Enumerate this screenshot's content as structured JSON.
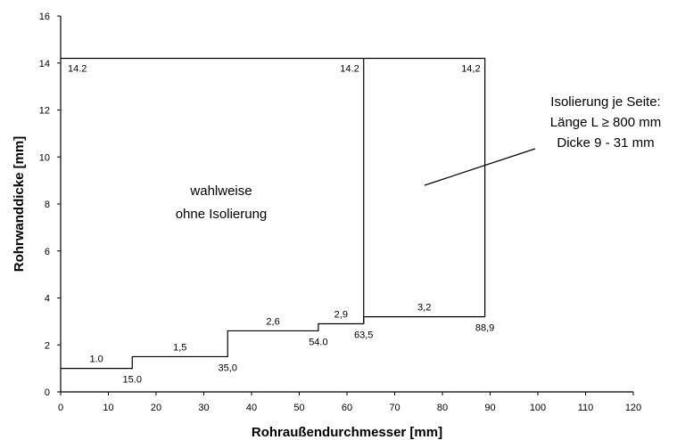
{
  "chart_data": {
    "type": "line",
    "title": "",
    "xlabel": "Rohraußendurchmesser [mm]",
    "ylabel": "Rohrwanddicke [mm]",
    "xlim": [
      0,
      120
    ],
    "ylim": [
      0,
      16
    ],
    "x_ticks": [
      0,
      10,
      20,
      30,
      40,
      50,
      60,
      70,
      80,
      90,
      100,
      110,
      120
    ],
    "y_ticks": [
      0,
      2,
      4,
      6,
      8,
      10,
      12,
      14,
      16
    ],
    "grid": false,
    "legend": "none",
    "line_color": "#000000",
    "series": [
      {
        "x": [
          0,
          15,
          15,
          35,
          35,
          54,
          54,
          63.5,
          63.5,
          88.9,
          88.9
        ],
        "y": [
          1.0,
          1.0,
          1.5,
          1.5,
          2.6,
          2.6,
          2.9,
          2.9,
          3.2,
          3.2,
          14.2
        ]
      },
      {
        "x": [
          0,
          88.9
        ],
        "y": [
          14.2,
          14.2
        ]
      },
      {
        "x": [
          63.5,
          63.5
        ],
        "y": [
          2.9,
          14.2
        ]
      }
    ],
    "step_labels": [
      {
        "text": "1.0",
        "x": 7.5,
        "y": 1.0
      },
      {
        "text": "1,5",
        "x": 25,
        "y": 1.5
      },
      {
        "text": "2,6",
        "x": 44.5,
        "y": 2.6
      },
      {
        "text": "2,9",
        "x": 58.75,
        "y": 2.9
      },
      {
        "text": "3,2",
        "x": 76.2,
        "y": 3.2
      }
    ],
    "breakpoint_labels": [
      {
        "text": "15.0",
        "x": 15,
        "y": 1.0
      },
      {
        "text": "35,0",
        "x": 35,
        "y": 1.5
      },
      {
        "text": "54.0",
        "x": 54,
        "y": 2.6
      },
      {
        "text": "63,5",
        "x": 63.5,
        "y": 2.9
      },
      {
        "text": "88,9",
        "x": 88.9,
        "y": 3.2
      }
    ],
    "top_labels": [
      {
        "text": "14.2",
        "x": 0,
        "y": 14.2
      },
      {
        "text": "14.2",
        "x": 63.5,
        "y": 14.2
      },
      {
        "text": "14,2",
        "x": 88.9,
        "y": 14.2
      }
    ],
    "annotations": {
      "region_left": [
        "wahlweise",
        "ohne Isolierung"
      ],
      "region_right": [
        "Isolierung je Seite:",
        "Länge L ≥ 800 mm",
        "Dicke 9 - 31 mm"
      ]
    }
  }
}
